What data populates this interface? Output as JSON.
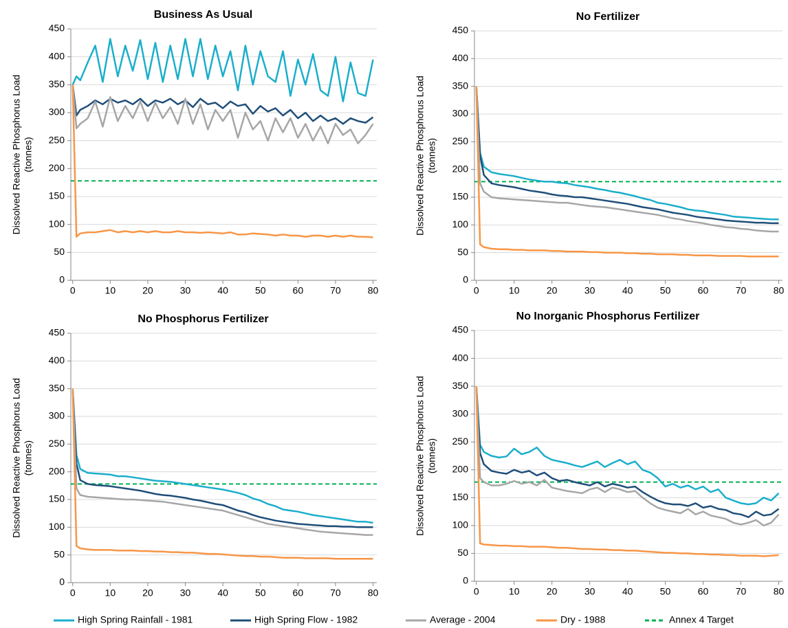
{
  "chart_data": [
    {
      "type": "line",
      "title": "Business As Usual",
      "ylabel": [
        "Dissolved Reactive Phosphorus Load",
        "(tonnes)"
      ],
      "x": [
        0,
        1,
        2,
        4,
        6,
        8,
        10,
        12,
        14,
        16,
        18,
        20,
        22,
        24,
        26,
        28,
        30,
        32,
        34,
        36,
        38,
        40,
        42,
        44,
        46,
        48,
        50,
        52,
        54,
        56,
        58,
        60,
        62,
        64,
        66,
        68,
        70,
        72,
        74,
        76,
        78,
        80
      ],
      "xlim": [
        -0.5,
        81
      ],
      "xticks": [
        0,
        10,
        20,
        30,
        40,
        50,
        60,
        70,
        80
      ],
      "ylim": [
        0,
        450
      ],
      "yticks": [
        0,
        50,
        100,
        150,
        200,
        250,
        300,
        350,
        400,
        450
      ],
      "grid": true,
      "series": [
        {
          "name": "High Spring Rainfall - 1981",
          "color": "#1aaecb",
          "values": [
            350,
            365,
            358,
            390,
            420,
            355,
            432,
            365,
            420,
            375,
            430,
            360,
            425,
            355,
            420,
            360,
            432,
            365,
            432,
            360,
            420,
            365,
            410,
            340,
            420,
            350,
            410,
            365,
            355,
            410,
            330,
            395,
            350,
            405,
            340,
            330,
            400,
            320,
            390,
            335,
            330,
            395
          ]
        },
        {
          "name": "High Spring Flow - 1982",
          "color": "#1f4e79",
          "values": [
            350,
            295,
            305,
            312,
            322,
            315,
            325,
            318,
            322,
            315,
            325,
            312,
            322,
            318,
            325,
            315,
            322,
            310,
            325,
            315,
            318,
            308,
            320,
            312,
            315,
            298,
            312,
            302,
            308,
            295,
            305,
            290,
            300,
            285,
            295,
            285,
            290,
            280,
            290,
            285,
            282,
            292
          ]
        },
        {
          "name": "Average - 2004",
          "color": "#a6a6a6",
          "values": [
            350,
            272,
            280,
            290,
            320,
            275,
            328,
            285,
            312,
            290,
            320,
            285,
            318,
            290,
            310,
            280,
            325,
            280,
            315,
            270,
            305,
            285,
            305,
            255,
            300,
            270,
            285,
            250,
            290,
            265,
            290,
            255,
            280,
            250,
            275,
            245,
            280,
            260,
            270,
            245,
            260,
            280
          ]
        },
        {
          "name": "Dry - 1988",
          "color": "#f79646",
          "values": [
            350,
            78,
            84,
            86,
            86,
            88,
            90,
            86,
            88,
            86,
            88,
            86,
            88,
            86,
            86,
            88,
            86,
            86,
            85,
            86,
            85,
            84,
            86,
            82,
            82,
            84,
            83,
            82,
            80,
            82,
            80,
            80,
            78,
            80,
            80,
            78,
            80,
            78,
            80,
            78,
            78,
            77
          ]
        }
      ],
      "hline": {
        "name": "Annex 4 Target",
        "value": 178,
        "color": "#00b050"
      }
    },
    {
      "type": "line",
      "title": "No Fertilizer",
      "ylabel": [
        "Dissolved Reactive Phosphorus Load",
        "(tonnes)"
      ],
      "x": [
        0,
        1,
        2,
        4,
        6,
        8,
        10,
        12,
        14,
        16,
        18,
        20,
        22,
        24,
        26,
        28,
        30,
        32,
        34,
        36,
        38,
        40,
        42,
        44,
        46,
        48,
        50,
        52,
        54,
        56,
        58,
        60,
        62,
        64,
        66,
        68,
        70,
        72,
        74,
        76,
        78,
        80
      ],
      "xlim": [
        -0.5,
        81
      ],
      "xticks": [
        0,
        10,
        20,
        30,
        40,
        50,
        60,
        70,
        80
      ],
      "ylim": [
        0,
        450
      ],
      "yticks": [
        0,
        50,
        100,
        150,
        200,
        250,
        300,
        350,
        400,
        450
      ],
      "grid": true,
      "series": [
        {
          "name": "High Spring Rainfall - 1981",
          "color": "#1aaecb",
          "values": [
            350,
            230,
            205,
            195,
            192,
            190,
            188,
            185,
            182,
            180,
            178,
            178,
            176,
            175,
            172,
            170,
            168,
            165,
            163,
            160,
            158,
            155,
            152,
            148,
            145,
            140,
            138,
            135,
            132,
            128,
            126,
            125,
            122,
            120,
            118,
            115,
            114,
            113,
            112,
            111,
            110,
            110
          ]
        },
        {
          "name": "High Spring Flow - 1982",
          "color": "#1f4e79",
          "values": [
            350,
            225,
            190,
            175,
            172,
            170,
            168,
            165,
            162,
            160,
            158,
            155,
            153,
            152,
            150,
            150,
            148,
            146,
            144,
            142,
            140,
            138,
            135,
            132,
            130,
            128,
            125,
            122,
            120,
            118,
            115,
            113,
            112,
            110,
            108,
            107,
            106,
            105,
            104,
            104,
            103,
            103
          ]
        },
        {
          "name": "Average - 2004",
          "color": "#a6a6a6",
          "values": [
            350,
            175,
            160,
            150,
            148,
            147,
            146,
            145,
            144,
            143,
            142,
            141,
            140,
            140,
            138,
            136,
            134,
            133,
            132,
            130,
            128,
            126,
            124,
            122,
            120,
            118,
            115,
            112,
            110,
            107,
            105,
            103,
            100,
            98,
            96,
            95,
            93,
            92,
            90,
            89,
            88,
            88
          ]
        },
        {
          "name": "Dry - 1988",
          "color": "#f79646",
          "values": [
            350,
            65,
            60,
            57,
            56,
            56,
            55,
            55,
            54,
            54,
            54,
            53,
            53,
            52,
            52,
            52,
            51,
            51,
            50,
            50,
            50,
            49,
            49,
            48,
            48,
            47,
            47,
            47,
            46,
            46,
            45,
            45,
            45,
            44,
            44,
            44,
            44,
            43,
            43,
            43,
            43,
            43
          ]
        }
      ],
      "hline": {
        "name": "Annex 4 Target",
        "value": 178,
        "color": "#00b050"
      }
    },
    {
      "type": "line",
      "title": "No Phosphorus Fertilizer",
      "ylabel": [
        "Dissolved Reactive Phosphorus Load",
        "(tonnes)"
      ],
      "x": [
        0,
        1,
        2,
        4,
        6,
        8,
        10,
        12,
        14,
        16,
        18,
        20,
        22,
        24,
        26,
        28,
        30,
        32,
        34,
        36,
        38,
        40,
        42,
        44,
        46,
        48,
        50,
        52,
        54,
        56,
        58,
        60,
        62,
        64,
        66,
        68,
        70,
        72,
        74,
        76,
        78,
        80
      ],
      "xlim": [
        -0.5,
        81
      ],
      "xticks": [
        0,
        10,
        20,
        30,
        40,
        50,
        60,
        70,
        80
      ],
      "ylim": [
        0,
        450
      ],
      "yticks": [
        0,
        50,
        100,
        150,
        200,
        250,
        300,
        350,
        400,
        450
      ],
      "grid": true,
      "series": [
        {
          "name": "High Spring Rainfall - 1981",
          "color": "#1aaecb",
          "values": [
            350,
            230,
            205,
            198,
            197,
            196,
            195,
            192,
            192,
            190,
            188,
            186,
            184,
            183,
            182,
            180,
            178,
            176,
            174,
            172,
            170,
            168,
            165,
            162,
            158,
            152,
            148,
            142,
            138,
            132,
            130,
            128,
            125,
            122,
            120,
            118,
            116,
            114,
            112,
            110,
            110,
            108
          ]
        },
        {
          "name": "High Spring Flow - 1982",
          "color": "#1f4e79",
          "values": [
            350,
            215,
            185,
            178,
            176,
            175,
            174,
            172,
            170,
            168,
            166,
            163,
            160,
            158,
            157,
            155,
            153,
            150,
            148,
            145,
            142,
            140,
            135,
            130,
            127,
            122,
            118,
            115,
            112,
            110,
            108,
            106,
            105,
            104,
            103,
            102,
            102,
            101,
            101,
            100,
            100,
            100
          ]
        },
        {
          "name": "Average - 2004",
          "color": "#a6a6a6",
          "values": [
            350,
            170,
            158,
            155,
            154,
            153,
            152,
            151,
            150,
            150,
            149,
            148,
            147,
            146,
            144,
            142,
            140,
            138,
            136,
            134,
            132,
            130,
            126,
            122,
            118,
            114,
            110,
            106,
            104,
            102,
            100,
            98,
            96,
            94,
            92,
            91,
            90,
            89,
            88,
            87,
            86,
            86
          ]
        },
        {
          "name": "Dry - 1988",
          "color": "#f79646",
          "values": [
            350,
            66,
            62,
            60,
            59,
            59,
            59,
            58,
            58,
            58,
            57,
            57,
            56,
            56,
            55,
            55,
            54,
            54,
            53,
            52,
            52,
            51,
            50,
            49,
            48,
            48,
            47,
            47,
            46,
            45,
            45,
            45,
            44,
            44,
            44,
            44,
            43,
            43,
            43,
            43,
            43,
            43
          ]
        }
      ],
      "hline": {
        "name": "Annex 4 Target",
        "value": 178,
        "color": "#00b050"
      }
    },
    {
      "type": "line",
      "title": "No Inorganic  Phosphorus Fertilizer",
      "ylabel": [
        "Dissolved Reactive Phosphorus Load",
        "(tonnes)"
      ],
      "x": [
        0,
        1,
        2,
        4,
        6,
        8,
        10,
        12,
        14,
        16,
        18,
        20,
        22,
        24,
        26,
        28,
        30,
        32,
        34,
        36,
        38,
        40,
        42,
        44,
        46,
        48,
        50,
        52,
        54,
        56,
        58,
        60,
        62,
        64,
        66,
        68,
        70,
        72,
        74,
        76,
        78,
        80
      ],
      "xlim": [
        -0.5,
        81
      ],
      "xticks": [
        0,
        10,
        20,
        30,
        40,
        50,
        60,
        70,
        80
      ],
      "ylim": [
        0,
        450
      ],
      "yticks": [
        0,
        50,
        100,
        150,
        200,
        250,
        300,
        350,
        400,
        450
      ],
      "grid": true,
      "series": [
        {
          "name": "High Spring Rainfall - 1981",
          "color": "#1aaecb",
          "values": [
            350,
            245,
            232,
            225,
            222,
            224,
            238,
            228,
            232,
            240,
            225,
            218,
            215,
            212,
            208,
            205,
            210,
            215,
            205,
            212,
            218,
            210,
            215,
            200,
            195,
            185,
            170,
            175,
            168,
            172,
            165,
            170,
            160,
            165,
            150,
            145,
            140,
            138,
            140,
            150,
            145,
            158
          ]
        },
        {
          "name": "High Spring Flow - 1982",
          "color": "#1f4e79",
          "values": [
            350,
            230,
            210,
            198,
            195,
            193,
            200,
            195,
            198,
            190,
            195,
            185,
            180,
            182,
            178,
            175,
            172,
            178,
            170,
            175,
            172,
            168,
            170,
            160,
            152,
            145,
            140,
            138,
            138,
            135,
            140,
            132,
            135,
            130,
            128,
            122,
            120,
            115,
            125,
            118,
            120,
            130
          ]
        },
        {
          "name": "Average - 2004",
          "color": "#a6a6a6",
          "values": [
            350,
            185,
            178,
            172,
            172,
            175,
            180,
            175,
            178,
            172,
            182,
            168,
            165,
            162,
            160,
            158,
            165,
            168,
            160,
            168,
            165,
            160,
            162,
            150,
            140,
            132,
            128,
            125,
            122,
            130,
            120,
            125,
            118,
            115,
            112,
            105,
            102,
            105,
            110,
            100,
            105,
            120
          ]
        },
        {
          "name": "Dry - 1988",
          "color": "#f79646",
          "values": [
            350,
            68,
            66,
            65,
            64,
            64,
            63,
            63,
            62,
            62,
            62,
            61,
            60,
            60,
            59,
            58,
            58,
            57,
            57,
            56,
            56,
            55,
            55,
            54,
            53,
            52,
            51,
            51,
            50,
            50,
            49,
            49,
            48,
            48,
            47,
            47,
            46,
            46,
            46,
            45,
            46,
            47
          ]
        }
      ],
      "hline": {
        "name": "Annex 4 Target",
        "value": 178,
        "color": "#00b050"
      }
    }
  ]
}
